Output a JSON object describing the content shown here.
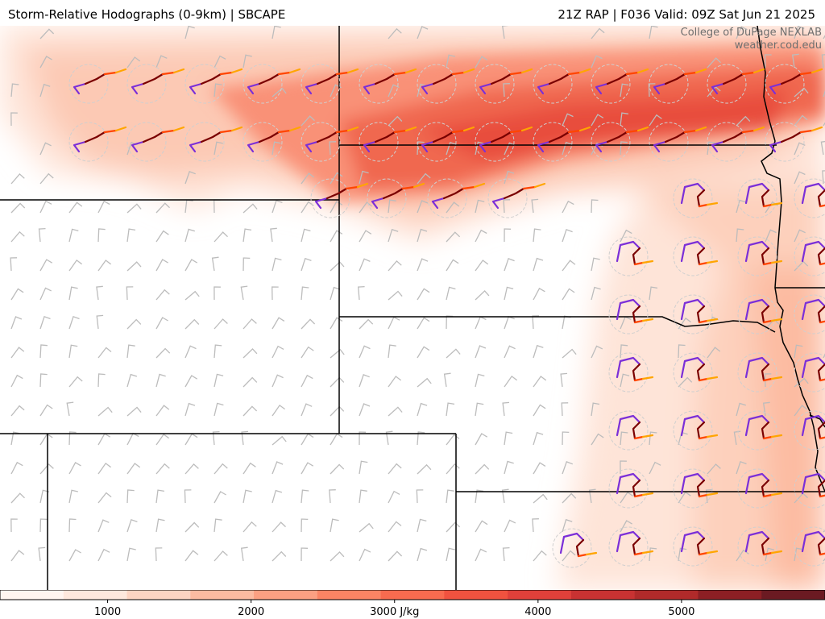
{
  "header": {
    "title_left": "Storm-Relative Hodographs (0-9km) | SBCAPE",
    "title_right": "21Z RAP | F036 Valid: 09Z Sat Jun 21 2025"
  },
  "credit": {
    "line1": "College of DuPage NEXLAB",
    "line2": "weather.cod.edu"
  },
  "colorbar": {
    "unit_label": "3000 J/kg",
    "ticks": [
      "1000",
      "2000",
      "3000 J/kg",
      "4000",
      "5000"
    ],
    "tick_values": [
      1000,
      2000,
      3000,
      4000,
      5000
    ],
    "range": [
      250,
      6000
    ],
    "colors": [
      "#fff5f0",
      "#fee8dd",
      "#fdd4c2",
      "#fcbba1",
      "#fca082",
      "#fb8464",
      "#f86b4f",
      "#f0523f",
      "#e0403a",
      "#c93232",
      "#b02a2a",
      "#8c1f24",
      "#6b1a22"
    ]
  },
  "legend_colors": {
    "hodo_0_3km": "#7b2fd8",
    "hodo_3_6km": "#7a0000",
    "hodo_6_8km": "#ff4500",
    "hodo_8_9km": "#ffa500",
    "barbs": "#bbbbbb",
    "borders": "#000000"
  }
}
